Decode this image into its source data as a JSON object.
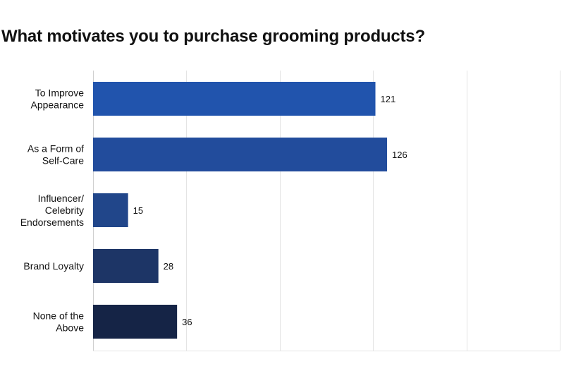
{
  "chart_data": {
    "type": "bar",
    "orientation": "horizontal",
    "title": "What motivates you to purchase grooming products?",
    "xlabel": "",
    "ylabel": "",
    "xlim": [
      0,
      200
    ],
    "grid": true,
    "legend": "none",
    "categories": [
      "To Improve\nAppearance",
      "As a Form of\nSelf-Care",
      "Influencer/\nCelebrity\nEndorsements",
      "Brand Loyalty",
      "None of the\nAbove"
    ],
    "values": [
      121,
      126,
      15,
      28,
      36
    ],
    "colors": [
      "#2154ad",
      "#224c9c",
      "#21468a",
      "#1d3566",
      "#152446"
    ]
  }
}
